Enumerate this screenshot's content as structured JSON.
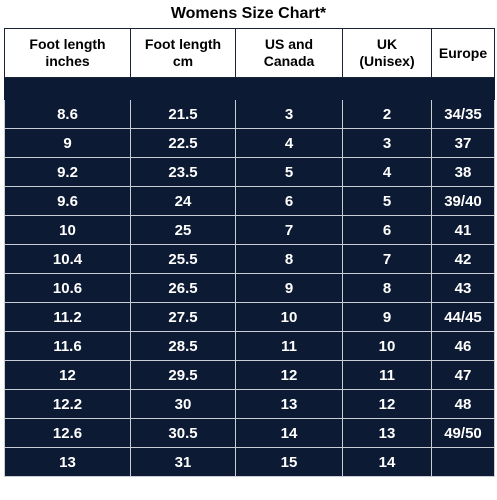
{
  "title": "Womens Size Chart*",
  "headers": {
    "foot_in": {
      "line1": "Foot length",
      "line2": "inches"
    },
    "foot_cm": {
      "line1": "Foot length",
      "line2": "cm"
    },
    "us_ca": {
      "line1": "US and",
      "line2": "Canada"
    },
    "uk": {
      "line1": "UK",
      "line2": "(Unisex)"
    },
    "eu": {
      "line1": "Europe",
      "line2": ""
    }
  },
  "rows": [
    {
      "inches": "8.6",
      "cm": "21.5",
      "us": "3",
      "uk": "2",
      "eu": "34/35"
    },
    {
      "inches": "9",
      "cm": "22.5",
      "us": "4",
      "uk": "3",
      "eu": "37"
    },
    {
      "inches": "9.2",
      "cm": "23.5",
      "us": "5",
      "uk": "4",
      "eu": "38"
    },
    {
      "inches": "9.6",
      "cm": "24",
      "us": "6",
      "uk": "5",
      "eu": "39/40"
    },
    {
      "inches": "10",
      "cm": "25",
      "us": "7",
      "uk": "6",
      "eu": "41"
    },
    {
      "inches": "10.4",
      "cm": "25.5",
      "us": "8",
      "uk": "7",
      "eu": "42"
    },
    {
      "inches": "10.6",
      "cm": "26.5",
      "us": "9",
      "uk": "8",
      "eu": "43"
    },
    {
      "inches": "11.2",
      "cm": "27.5",
      "us": "10",
      "uk": "9",
      "eu": "44/45"
    },
    {
      "inches": "11.6",
      "cm": "28.5",
      "us": "11",
      "uk": "10",
      "eu": "46"
    },
    {
      "inches": "12",
      "cm": "29.5",
      "us": "12",
      "uk": "11",
      "eu": "47"
    },
    {
      "inches": "12.2",
      "cm": "30",
      "us": "13",
      "uk": "12",
      "eu": "48"
    },
    {
      "inches": "12.6",
      "cm": "30.5",
      "us": "14",
      "uk": "13",
      "eu": "49/50"
    },
    {
      "inches": "13",
      "cm": "31",
      "us": "15",
      "uk": "14",
      "eu": ""
    }
  ],
  "colors": {
    "cell_background": "#0d1a33",
    "cell_text": "#ffffff",
    "header_background": "#ffffff",
    "header_text": "#000000"
  }
}
